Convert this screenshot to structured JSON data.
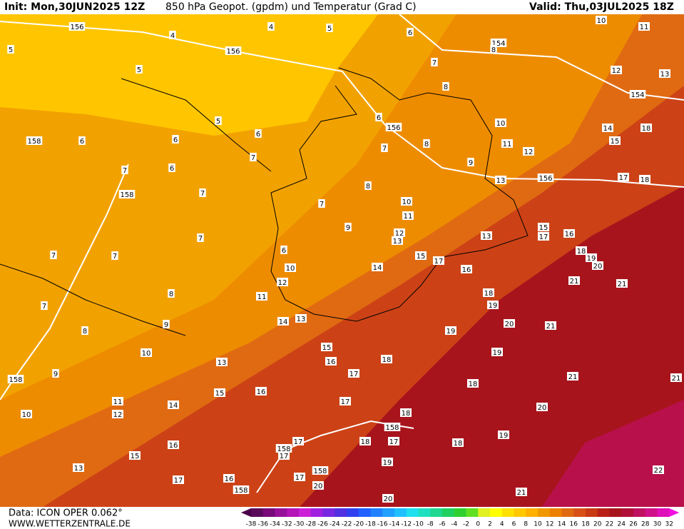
{
  "header": {
    "init": "Init: Mon,30JUN2025 12Z",
    "title": "850 hPa Geopot. (gpdm) und Temperatur (Grad C)",
    "valid": "Valid: Thu,03JUL2025 18Z"
  },
  "footer": {
    "data_source": "Data: ICON OPER 0.062°",
    "website": "WWW.WETTERZENTRALE.DE"
  },
  "colorbar": {
    "labels": [
      -38,
      -36,
      -34,
      -32,
      -30,
      -28,
      -26,
      -24,
      -22,
      -20,
      -18,
      -16,
      -14,
      -12,
      -10,
      -8,
      -6,
      -4,
      -2,
      0,
      2,
      4,
      6,
      8,
      10,
      12,
      14,
      16,
      18,
      20,
      22,
      24,
      26,
      28,
      30,
      32
    ]
  },
  "contour_labels": [
    156,
    4,
    4,
    5,
    6,
    10,
    11,
    5,
    156,
    154,
    8,
    7,
    5,
    12,
    13,
    8,
    154,
    5,
    6,
    156,
    10,
    14,
    18,
    158,
    6,
    6,
    6,
    7,
    8,
    11,
    12,
    15,
    7,
    9,
    7,
    6,
    17,
    18,
    156,
    13,
    8,
    158,
    7,
    10,
    7,
    11,
    9,
    12,
    13,
    15,
    17,
    16,
    13,
    7,
    6,
    7,
    7,
    18,
    19,
    20,
    15,
    17,
    10,
    14,
    16,
    12,
    21,
    21,
    8,
    11,
    18,
    7,
    19,
    13,
    14,
    9,
    20,
    21,
    8,
    19,
    15,
    10,
    19,
    16,
    18,
    13,
    9,
    158,
    17,
    21,
    21,
    18,
    15,
    16,
    11,
    17,
    20,
    14,
    12,
    10,
    18,
    158,
    19,
    17,
    18,
    17,
    16,
    18,
    158,
    17,
    15,
    13,
    19,
    158,
    17,
    22,
    17,
    16,
    20,
    158,
    21,
    20
  ]
}
